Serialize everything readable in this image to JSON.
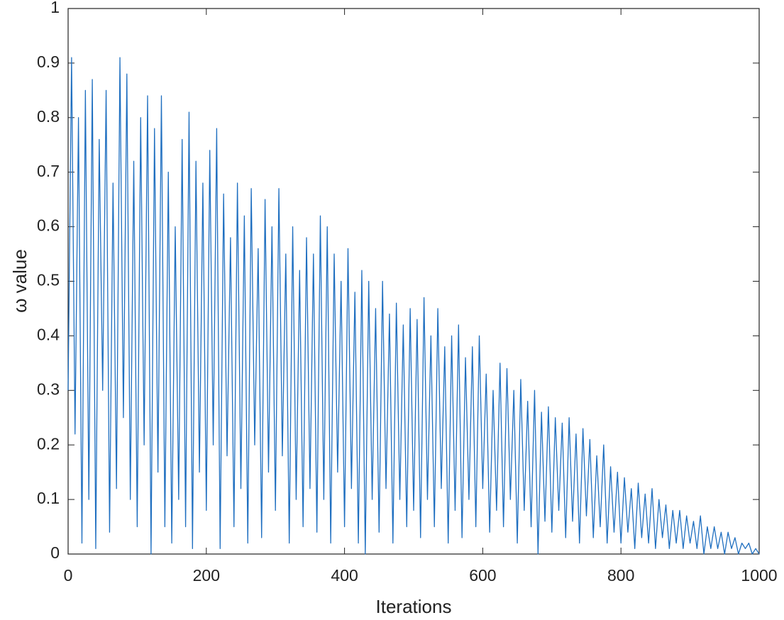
{
  "chart_data": {
    "type": "line",
    "xlabel": "Iterations",
    "ylabel": "ω value",
    "x": [
      0,
      5,
      10,
      15,
      20,
      25,
      30,
      35,
      40,
      45,
      50,
      55,
      60,
      65,
      70,
      75,
      80,
      85,
      90,
      95,
      100,
      105,
      110,
      115,
      120,
      125,
      130,
      135,
      140,
      145,
      150,
      155,
      160,
      165,
      170,
      175,
      180,
      185,
      190,
      195,
      200,
      205,
      210,
      215,
      220,
      225,
      230,
      235,
      240,
      245,
      250,
      255,
      260,
      265,
      270,
      275,
      280,
      285,
      290,
      295,
      300,
      305,
      310,
      315,
      320,
      325,
      330,
      335,
      340,
      345,
      350,
      355,
      360,
      365,
      370,
      375,
      380,
      385,
      390,
      395,
      400,
      405,
      410,
      415,
      420,
      425,
      430,
      435,
      440,
      445,
      450,
      455,
      460,
      465,
      470,
      475,
      480,
      485,
      490,
      495,
      500,
      505,
      510,
      515,
      520,
      525,
      530,
      535,
      540,
      545,
      550,
      555,
      560,
      565,
      570,
      575,
      580,
      585,
      590,
      595,
      600,
      605,
      610,
      615,
      620,
      625,
      630,
      635,
      640,
      645,
      650,
      655,
      660,
      665,
      670,
      675,
      680,
      685,
      690,
      695,
      700,
      705,
      710,
      715,
      720,
      725,
      730,
      735,
      740,
      745,
      750,
      755,
      760,
      765,
      770,
      775,
      780,
      785,
      790,
      795,
      800,
      805,
      810,
      815,
      820,
      825,
      830,
      835,
      840,
      845,
      850,
      855,
      860,
      865,
      870,
      875,
      880,
      885,
      890,
      895,
      900,
      905,
      910,
      915,
      920,
      925,
      930,
      935,
      940,
      945,
      950,
      955,
      960,
      965,
      970,
      975,
      980,
      985,
      990,
      995,
      1000
    ],
    "values": [
      0.3,
      0.91,
      0.22,
      0.8,
      0.02,
      0.85,
      0.1,
      0.87,
      0.01,
      0.76,
      0.3,
      0.85,
      0.04,
      0.68,
      0.12,
      0.91,
      0.25,
      0.88,
      0.1,
      0.72,
      0.05,
      0.8,
      0.2,
      0.84,
      0.0,
      0.78,
      0.15,
      0.84,
      0.05,
      0.7,
      0.02,
      0.6,
      0.1,
      0.76,
      0.05,
      0.81,
      0.01,
      0.72,
      0.15,
      0.68,
      0.08,
      0.74,
      0.2,
      0.78,
      0.01,
      0.66,
      0.18,
      0.58,
      0.05,
      0.68,
      0.12,
      0.62,
      0.02,
      0.67,
      0.2,
      0.56,
      0.03,
      0.65,
      0.15,
      0.6,
      0.08,
      0.67,
      0.18,
      0.55,
      0.02,
      0.6,
      0.1,
      0.52,
      0.05,
      0.58,
      0.12,
      0.55,
      0.04,
      0.62,
      0.1,
      0.6,
      0.02,
      0.55,
      0.15,
      0.5,
      0.05,
      0.56,
      0.12,
      0.48,
      0.02,
      0.52,
      0.0,
      0.5,
      0.1,
      0.45,
      0.04,
      0.5,
      0.12,
      0.44,
      0.02,
      0.46,
      0.1,
      0.42,
      0.05,
      0.45,
      0.08,
      0.43,
      0.03,
      0.47,
      0.1,
      0.4,
      0.05,
      0.45,
      0.12,
      0.38,
      0.02,
      0.4,
      0.08,
      0.42,
      0.03,
      0.36,
      0.1,
      0.38,
      0.05,
      0.4,
      0.12,
      0.33,
      0.04,
      0.3,
      0.08,
      0.35,
      0.05,
      0.34,
      0.1,
      0.3,
      0.02,
      0.32,
      0.08,
      0.28,
      0.05,
      0.3,
      0.0,
      0.26,
      0.06,
      0.27,
      0.04,
      0.25,
      0.08,
      0.24,
      0.03,
      0.25,
      0.06,
      0.22,
      0.02,
      0.23,
      0.07,
      0.21,
      0.03,
      0.18,
      0.05,
      0.2,
      0.02,
      0.16,
      0.04,
      0.15,
      0.02,
      0.14,
      0.04,
      0.12,
      0.01,
      0.13,
      0.03,
      0.11,
      0.02,
      0.12,
      0.01,
      0.1,
      0.03,
      0.09,
      0.01,
      0.08,
      0.02,
      0.08,
      0.01,
      0.07,
      0.02,
      0.06,
      0.01,
      0.07,
      0.0,
      0.05,
      0.01,
      0.05,
      0.01,
      0.04,
      0.0,
      0.04,
      0.01,
      0.03,
      0.0,
      0.02,
      0.01,
      0.02,
      0.0,
      0.01,
      0.0
    ],
    "color": "#1f6fc0",
    "xlim": [
      0,
      1000
    ],
    "xticks": [
      0,
      200,
      400,
      600,
      800,
      1000
    ],
    "ylim": [
      0,
      1
    ],
    "yticks": [
      0,
      0.1,
      0.2,
      0.3,
      0.4,
      0.5,
      0.6,
      0.7,
      0.8,
      0.9,
      1
    ]
  }
}
